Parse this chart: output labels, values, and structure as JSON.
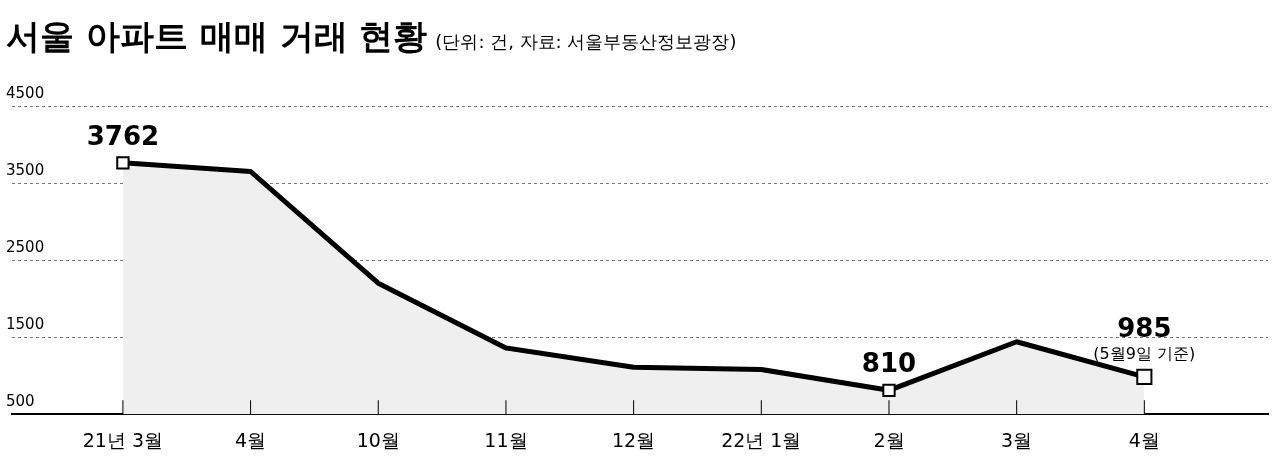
{
  "chart_data": {
    "type": "area",
    "title": "서울 아파트 매매 거래 현황",
    "subtitle": "(단위: 건, 자료: 서울부동산정보광장)",
    "categories": [
      "21년 3월",
      "4월",
      "10월",
      "11월",
      "12월",
      "22년 1월",
      "2월",
      "3월",
      "4월"
    ],
    "series": [
      {
        "color": "#000000",
        "values": [
          3762,
          3650,
          2200,
          1360,
          1110,
          1080,
          810,
          1440,
          985
        ],
        "value_labels": [
          "3762",
          null,
          null,
          null,
          null,
          null,
          "810",
          null,
          "985"
        ]
      }
    ],
    "annotations": [
      "(5월9일 기준)"
    ],
    "ylim": [
      500,
      4500
    ],
    "yticks": [
      500,
      1500,
      2500,
      3500,
      4500
    ],
    "grid": "y",
    "legend": false,
    "line_style": "solid"
  }
}
